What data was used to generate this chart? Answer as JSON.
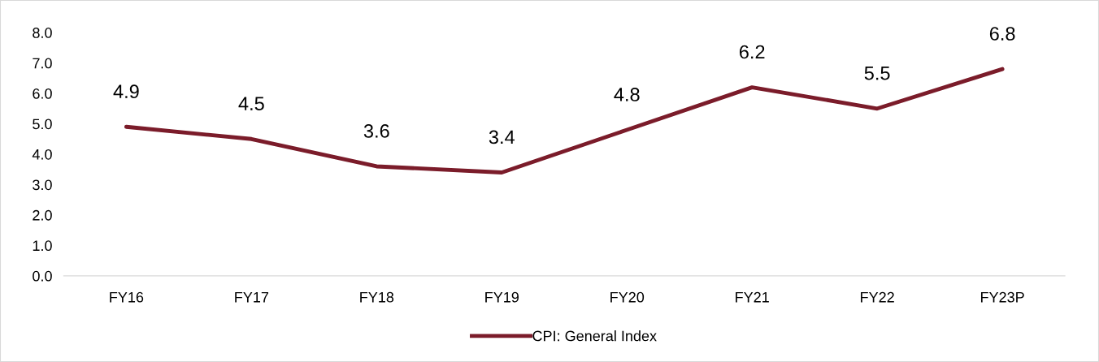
{
  "chart_data": {
    "type": "line",
    "categories": [
      "FY16",
      "FY17",
      "FY18",
      "FY19",
      "FY20",
      "FY21",
      "FY22",
      "FY23P"
    ],
    "series": [
      {
        "name": "CPI: General Index",
        "color": "#7b1c2a",
        "values": [
          4.9,
          4.5,
          3.6,
          3.4,
          4.8,
          6.2,
          5.5,
          6.8
        ]
      }
    ],
    "ylim": [
      0,
      8
    ],
    "yticks": [
      {
        "value": 0,
        "label": "0.0"
      },
      {
        "value": 1,
        "label": "1.0"
      },
      {
        "value": 2,
        "label": "2.0"
      },
      {
        "value": 3,
        "label": "3.0"
      },
      {
        "value": 4,
        "label": "4.0"
      },
      {
        "value": 5,
        "label": "5.0"
      },
      {
        "value": 6,
        "label": "6.0"
      },
      {
        "value": 7,
        "label": "7.0"
      },
      {
        "value": 8,
        "label": "8.0"
      }
    ],
    "data_labels": true,
    "grid": false,
    "legend": "bottom",
    "marker": "none",
    "line_style": "solid"
  }
}
